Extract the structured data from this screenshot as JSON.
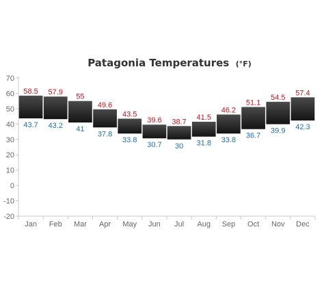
{
  "chart_data": {
    "type": "bar",
    "subtype": "floating-range",
    "title": "Patagonia Temperatures",
    "title_unit": "(°F)",
    "xlabel": "",
    "ylabel": "",
    "ylim": [
      -20,
      70
    ],
    "yticks": [
      70,
      60,
      50,
      40,
      30,
      20,
      10,
      0,
      -10,
      -20
    ],
    "categories": [
      "Jan",
      "Feb",
      "Mar",
      "Apr",
      "May",
      "Jun",
      "Jul",
      "Aug",
      "Sep",
      "Oct",
      "Nov",
      "Dec"
    ],
    "high": [
      58.5,
      57.9,
      55,
      49.6,
      43.5,
      39.6,
      38.7,
      41.5,
      46.2,
      51.1,
      54.5,
      57.4
    ],
    "low": [
      43.7,
      43.2,
      41,
      37.8,
      33.8,
      30.7,
      30,
      31.8,
      33.8,
      36.7,
      39.9,
      42.3
    ],
    "grid": false,
    "legend": "none",
    "colors": {
      "bar_top": "#4a4a4a",
      "bar_bottom": "#141414",
      "high_label": "#c0141e",
      "low_label": "#1f6fa8",
      "axis": "#c8c8c8",
      "tick_text": "#666666",
      "title": "#333333"
    }
  }
}
